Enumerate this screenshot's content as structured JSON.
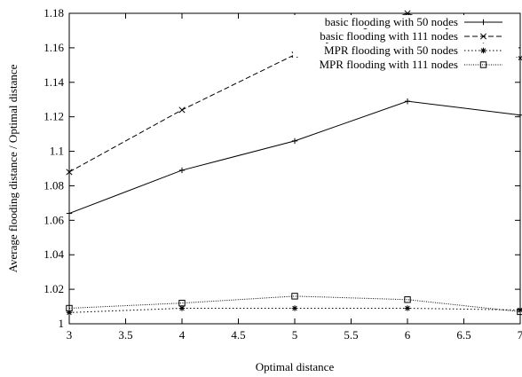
{
  "chart_data": {
    "type": "line",
    "title": "",
    "xlabel": "Optimal distance",
    "ylabel": "Average flooding distance / Optimal distance",
    "xlim": [
      3,
      7
    ],
    "ylim": [
      1,
      1.18
    ],
    "xticks": [
      3,
      3.5,
      4,
      4.5,
      5,
      5.5,
      6,
      6.5,
      7
    ],
    "xtick_labels": [
      "3",
      "3.5",
      "4",
      "4.5",
      "5",
      "5.5",
      "6",
      "6.5",
      "7"
    ],
    "yticks": [
      1,
      1.02,
      1.04,
      1.06,
      1.08,
      1.1,
      1.12,
      1.14,
      1.16,
      1.18
    ],
    "ytick_labels": [
      "1",
      "1.02",
      "1.04",
      "1.06",
      "1.08",
      "1.1",
      "1.12",
      "1.14",
      "1.16",
      "1.18"
    ],
    "grid": false,
    "legend_position": "top-right",
    "x": [
      3,
      4,
      5,
      6,
      7
    ],
    "series": [
      {
        "name": "basic flooding with 50 nodes",
        "marker": "plus",
        "dash": "solid",
        "values": [
          1.064,
          1.089,
          1.106,
          1.129,
          1.121
        ]
      },
      {
        "name": "basic flooding with 111 nodes",
        "marker": "cross",
        "dash": "dashed",
        "values": [
          1.088,
          1.124,
          1.156,
          1.18,
          1.154
        ]
      },
      {
        "name": "MPR flooding with 50 nodes",
        "marker": "star",
        "dash": "dotted",
        "values": [
          1.0065,
          1.009,
          1.009,
          1.009,
          1.008
        ]
      },
      {
        "name": "MPR flooding with 111 nodes",
        "marker": "square",
        "dash": "finedotted",
        "values": [
          1.009,
          1.012,
          1.016,
          1.014,
          1.007
        ]
      }
    ]
  }
}
